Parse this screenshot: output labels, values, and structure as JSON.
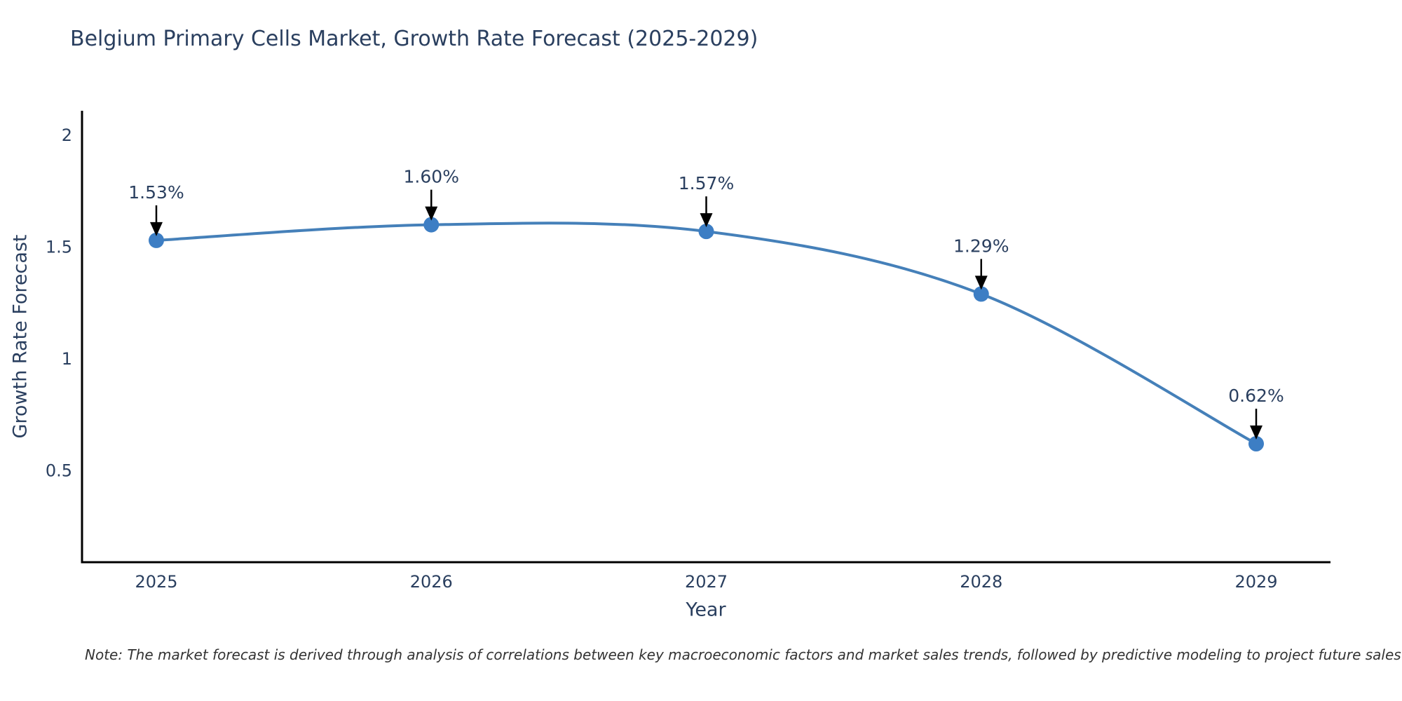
{
  "page": {
    "title": "Belgium Primary Cells Market, Growth Rate Forecast (2025-2029)",
    "note": "Note: The market forecast is derived through analysis of correlations between key macroeconomic factors and market sales trends, followed by predictive modeling to project future sales"
  },
  "colors": {
    "background": "#ffffff",
    "title_text": "#2a3f5f",
    "axis_text": "#2a3f5f",
    "tick_text": "#2a3f5f",
    "note_text": "#333333",
    "axis_line": "#000000",
    "series_line": "#4580b9",
    "marker_fill": "#3d7ec4",
    "annotation_text": "#2a3f5f",
    "annotation_arrow": "#000000"
  },
  "chart_data": {
    "type": "line",
    "title": "Belgium Primary Cells Market, Growth Rate Forecast (2025-2029)",
    "xlabel": "Year",
    "ylabel": "Growth Rate Forecast",
    "categories": [
      "2025",
      "2026",
      "2027",
      "2028",
      "2029"
    ],
    "values": [
      1.53,
      1.6,
      1.57,
      1.29,
      0.62
    ],
    "point_labels": [
      "1.53%",
      "1.60%",
      "1.57%",
      "1.29%",
      "0.62%"
    ],
    "ylim": [
      0.09,
      2.11
    ],
    "yticks": [
      0.5,
      1,
      1.5,
      2
    ],
    "ytick_labels": [
      "0.5",
      "1",
      "1.5",
      "2"
    ],
    "grid": false,
    "legend_position": "none",
    "line_shape": "spline",
    "annotations": "black arrows pointing down from each percentage label to its data point"
  }
}
